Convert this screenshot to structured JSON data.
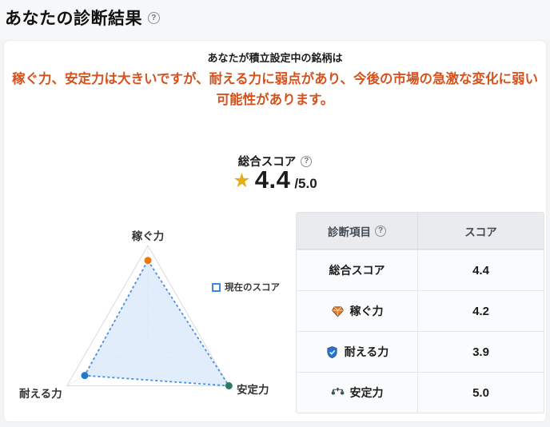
{
  "page": {
    "title": "あなたの診断結果"
  },
  "icons": {
    "help": "?",
    "star": "★"
  },
  "summary": {
    "intro": "あなたが積立設定中の銘柄は",
    "message": "稼ぐ力、安定力は大きいですが、耐える力に弱点があり、今後の市場の急激な変化に弱い可能性があります。",
    "message_color": "#d5521d"
  },
  "overall": {
    "label": "総合スコア",
    "value": "4.4",
    "denominator": "/5.0",
    "star_color": "#e3ae14"
  },
  "chart_data": {
    "type": "radar",
    "axes": [
      "稼ぐ力",
      "安定力",
      "耐える力"
    ],
    "values": [
      4.2,
      5.0,
      3.9
    ],
    "max": 5.0,
    "levels": 5,
    "legend": [
      {
        "label": "現在のスコア",
        "style": "dashed-blue-square"
      }
    ],
    "fill_color": "#dbe9fb",
    "stroke_color": "#4a8fe2",
    "point_colors": [
      "#ee7611",
      "#2b7a62",
      "#1e78d2"
    ],
    "grid": "concentric-triangles"
  },
  "table": {
    "headers": [
      "診断項目",
      "スコア"
    ],
    "rows": [
      {
        "icon": "none",
        "label": "総合スコア",
        "score": "4.4"
      },
      {
        "icon": "diamond",
        "label": "稼ぐ力",
        "score": "4.2"
      },
      {
        "icon": "shield",
        "label": "耐える力",
        "score": "3.9"
      },
      {
        "icon": "scale",
        "label": "安定力",
        "score": "5.0"
      }
    ]
  }
}
